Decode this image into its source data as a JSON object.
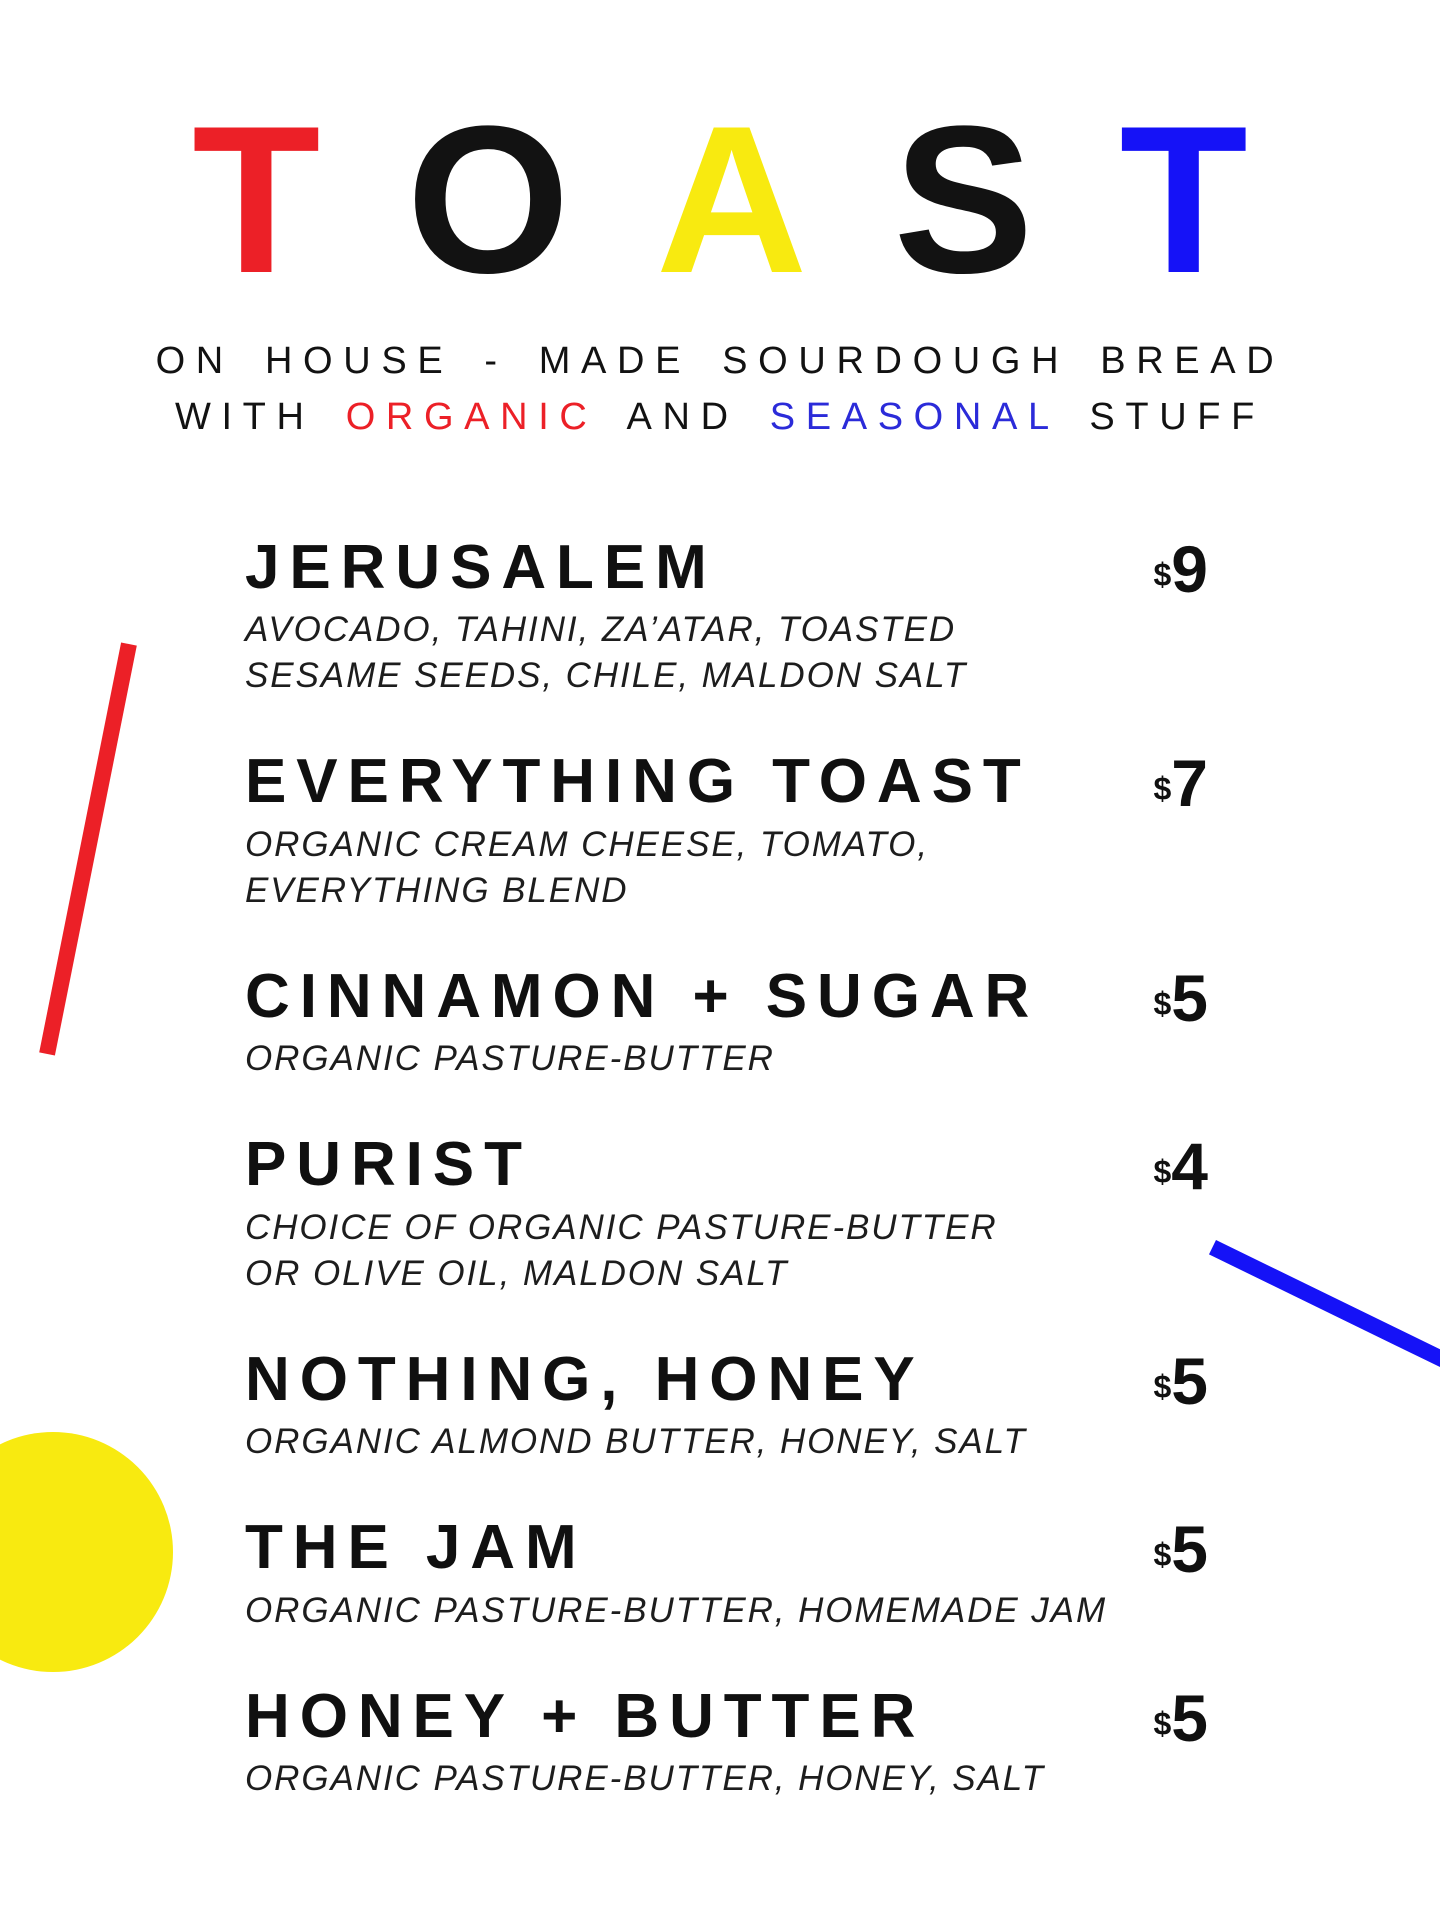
{
  "palette": {
    "red": "#EC2027",
    "yellow": "#F8EA10",
    "blue": "#1512F7",
    "black": "#121212"
  },
  "header": {
    "title_letters": [
      {
        "char": "T",
        "color": "#EC2027"
      },
      {
        "char": "O",
        "color": "#121212"
      },
      {
        "char": "A",
        "color": "#F8EA10"
      },
      {
        "char": "S",
        "color": "#121212"
      },
      {
        "char": "T",
        "color": "#1512F7"
      }
    ],
    "subtitle_line1": "ON HOUSE - MADE SOURDOUGH BREAD",
    "subtitle_line2_parts": [
      {
        "text": "WITH ",
        "color": "#121212"
      },
      {
        "text": "ORGANIC",
        "color": "#EC2027"
      },
      {
        "text": " AND ",
        "color": "#121212"
      },
      {
        "text": "SEASONAL",
        "color": "#2B2BD9"
      },
      {
        "text": " STUFF",
        "color": "#121212"
      }
    ]
  },
  "menu": {
    "currency": "$",
    "items": [
      {
        "name": "JERUSALEM",
        "price": "9",
        "description": "AVOCADO, TAHINI, ZA’ATAR, TOASTED\nSESAME SEEDS, CHILE, MALDON SALT"
      },
      {
        "name": "EVERYTHING TOAST",
        "price": "7",
        "description": "ORGANIC CREAM CHEESE, TOMATO,\nEVERYTHING BLEND"
      },
      {
        "name": "CINNAMON + SUGAR",
        "price": "5",
        "description": "ORGANIC PASTURE-BUTTER"
      },
      {
        "name": "PURIST",
        "price": "4",
        "description": "CHOICE OF ORGANIC PASTURE-BUTTER\nOR OLIVE OIL, MALDON SALT"
      },
      {
        "name": "NOTHING, HONEY",
        "price": "5",
        "description": "ORGANIC ALMOND BUTTER, HONEY, SALT"
      },
      {
        "name": "THE JAM",
        "price": "5",
        "description": "ORGANIC PASTURE-BUTTER, HOMEMADE JAM"
      },
      {
        "name": "HONEY + BUTTER",
        "price": "5",
        "description": "ORGANIC PASTURE-BUTTER, HONEY, SALT"
      }
    ]
  },
  "decorations": {
    "red_line_color": "#EC2027",
    "blue_line_color": "#1512F7",
    "yellow_circle_color": "#F8EA10"
  }
}
